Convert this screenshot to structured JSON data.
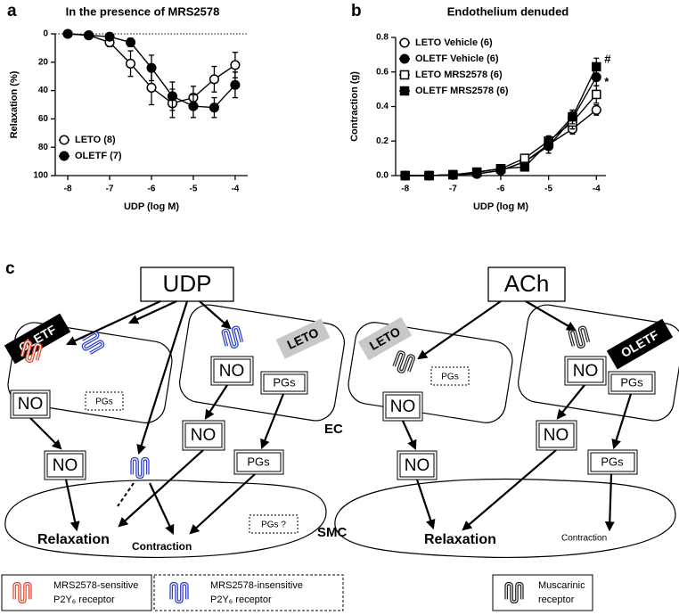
{
  "chart_data": [
    {
      "type": "line",
      "panel_label": "a",
      "title": "In the presence of MRS2578",
      "xlabel": "UDP (log M)",
      "ylabel": "Relaxation (%)",
      "x": [
        -8,
        -7.5,
        -7,
        -6.5,
        -6,
        -5.5,
        -5,
        -4.5,
        -4
      ],
      "xlim": [
        -8.3,
        -3.7
      ],
      "xticks": [
        -8,
        -7,
        -6,
        -5,
        -4
      ],
      "ylim": [
        0,
        100
      ],
      "yticks": [
        0,
        20,
        40,
        60,
        80,
        100
      ],
      "y_inverted": true,
      "reference_line": 0,
      "legend": "lower left",
      "series": [
        {
          "name": "LETO (8)",
          "color": "#000000",
          "marker": "circle",
          "fill": "#ffffff",
          "values": [
            0,
            1,
            6,
            21,
            38,
            49,
            45,
            32,
            22
          ],
          "errors": [
            1,
            1,
            3,
            9,
            12,
            10,
            8,
            9,
            9
          ]
        },
        {
          "name": "OLETF (7)",
          "color": "#000000",
          "marker": "circle",
          "fill": "#000000",
          "values": [
            0,
            1,
            2,
            6,
            24,
            44,
            51,
            52,
            36
          ],
          "errors": [
            0,
            1,
            1,
            3,
            9,
            10,
            8,
            7,
            9
          ]
        }
      ]
    },
    {
      "type": "line",
      "panel_label": "b",
      "title": "Endothelium denuded",
      "xlabel": "UDP (log M)",
      "ylabel": "Contraction (g)",
      "x": [
        -8,
        -7.5,
        -7,
        -6.5,
        -6,
        -5.5,
        -5,
        -4.5,
        -4
      ],
      "xlim": [
        -8.2,
        -3.8
      ],
      "xticks": [
        -8,
        -7,
        -6,
        -5,
        -4
      ],
      "ylim": [
        0,
        0.8
      ],
      "yticks": [
        {
          "value": 0,
          "label": "0.0"
        },
        0.2,
        0.4,
        0.6,
        0.8
      ],
      "legend": "upper left",
      "series": [
        {
          "name": "LETO Vehicle (6)",
          "color": "#000000",
          "marker": "circle",
          "fill": "#ffffff",
          "values": [
            0,
            0,
            0.005,
            0.01,
            0.03,
            0.08,
            0.18,
            0.27,
            0.38
          ],
          "errors": [
            0,
            0,
            0,
            0.005,
            0.01,
            0.02,
            0.03,
            0.03,
            0.03
          ]
        },
        {
          "name": "OLETF Vehicle (6)",
          "color": "#000000",
          "marker": "circle",
          "fill": "#000000",
          "values": [
            0,
            0,
            0.005,
            0.01,
            0.03,
            0.08,
            0.17,
            0.33,
            0.57
          ],
          "errors": [
            0,
            0,
            0,
            0.005,
            0.01,
            0.01,
            0.04,
            0.04,
            0.05
          ],
          "annotation": "*"
        },
        {
          "name": "LETO MRS2578 (6)",
          "color": "#000000",
          "marker": "square",
          "fill": "#ffffff",
          "values": [
            0,
            0,
            0.005,
            0.02,
            0.04,
            0.1,
            0.2,
            0.31,
            0.47
          ],
          "errors": [
            0,
            0,
            0,
            0.005,
            0.01,
            0.02,
            0.03,
            0.04,
            0.05
          ]
        },
        {
          "name": "OLETF MRS2578 (6)",
          "color": "#000000",
          "marker": "square",
          "fill": "#000000",
          "values": [
            0,
            0,
            0.005,
            0.02,
            0.04,
            0.05,
            0.19,
            0.34,
            0.63
          ],
          "errors": [
            0,
            0,
            0,
            0.005,
            0.01,
            0.01,
            0.03,
            0.04,
            0.05
          ],
          "annotation": "#"
        }
      ]
    }
  ],
  "diagram": {
    "panel_label": "c",
    "udp": "UDP",
    "ach": "ACh",
    "tags": [
      "OLETF",
      "LETO",
      "LETO",
      "OLETF"
    ],
    "no": [
      "NO",
      "NO",
      "NO",
      "NO",
      "NO",
      "NO",
      "NO",
      "NO"
    ],
    "pgs": [
      "PGs",
      "PGs",
      "PGs",
      "PGs",
      "PGs",
      "PGs"
    ],
    "pgs_question": "PGs ?",
    "ec": "EC",
    "smc": "SMC",
    "relaxation": [
      "Relaxation",
      "Relaxation"
    ],
    "contraction": [
      "Contraction",
      "Contraction"
    ],
    "legend": [
      {
        "label": [
          "MRS2578-sensitive",
          "P2Y₆ receptor"
        ]
      },
      {
        "label": [
          "MRS2578-insensitive",
          "P2Y₆ receptor"
        ]
      },
      {
        "label": [
          "Muscarinic",
          "receptor"
        ]
      }
    ]
  }
}
